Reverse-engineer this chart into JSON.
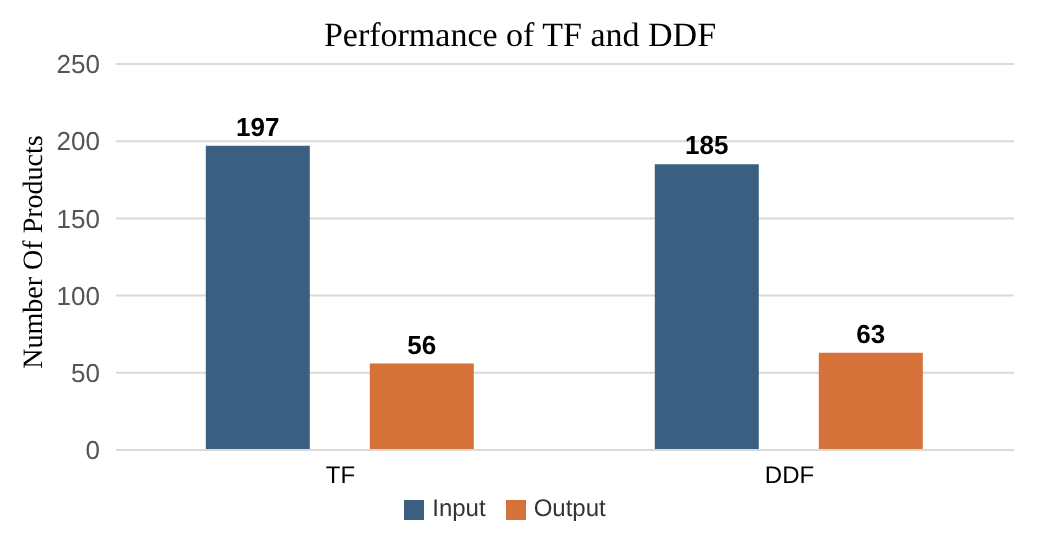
{
  "chart_data": {
    "type": "bar",
    "title": "Performance of TF and DDF",
    "ylabel": "Number Of Products",
    "categories": [
      "TF",
      "DDF"
    ],
    "series": [
      {
        "name": "Input",
        "color": "#3a5f80",
        "values": [
          197,
          185
        ]
      },
      {
        "name": "Output",
        "color": "#d4723a",
        "values": [
          56,
          63
        ]
      }
    ],
    "ylim": [
      0,
      250
    ],
    "yticks": [
      0,
      50,
      100,
      150,
      200,
      250
    ],
    "grid": "y",
    "legend": "bottom",
    "data_labels": true
  }
}
